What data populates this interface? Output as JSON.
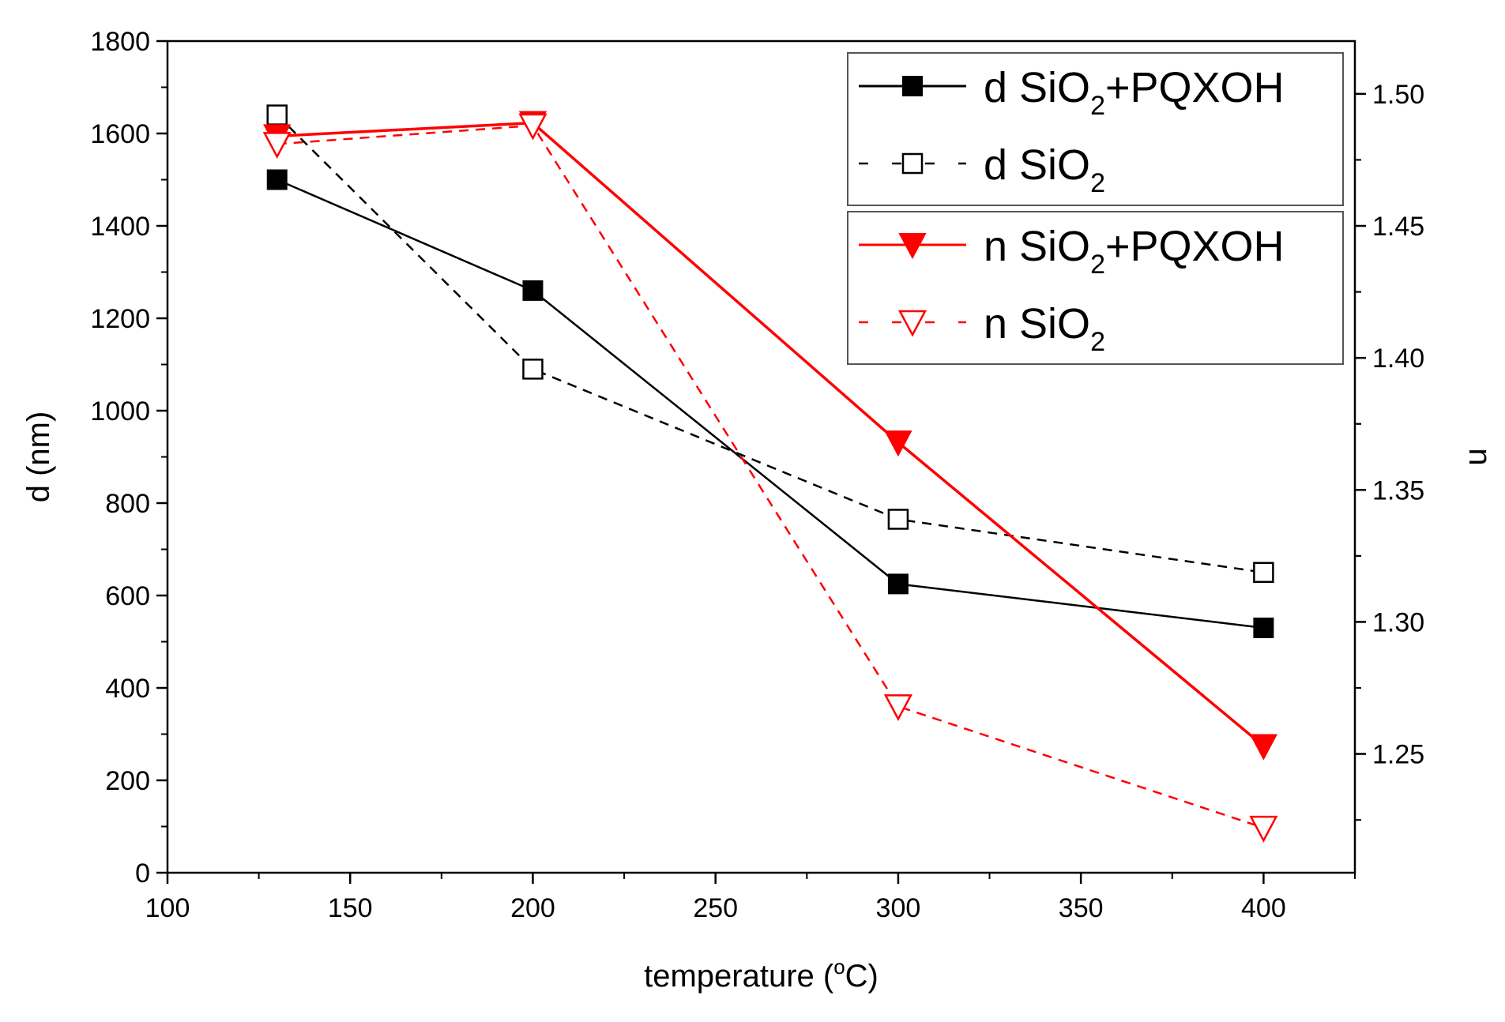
{
  "chart_data": {
    "type": "line",
    "title": "",
    "xlabel": "temperature (",
    "xlabel_degree": "o",
    "xlabel_unit": "C)",
    "ylabel_left": "d (nm)",
    "ylabel_right": "n",
    "xlim": [
      100,
      425
    ],
    "ylim_left": [
      0,
      1800
    ],
    "ylim_right": [
      1.205,
      1.52
    ],
    "x_ticks": [
      100,
      150,
      200,
      250,
      300,
      350,
      400
    ],
    "x_tick_labels": [
      "100",
      "150",
      "200",
      "250",
      "300",
      "350",
      "400"
    ],
    "y_left_ticks": [
      0,
      200,
      400,
      600,
      800,
      1000,
      1200,
      1400,
      1600,
      1800
    ],
    "y_left_tick_labels": [
      "0",
      "200",
      "400",
      "600",
      "800",
      "1000",
      "1200",
      "1400",
      "1600",
      "1800"
    ],
    "y_right_ticks": [
      1.25,
      1.3,
      1.35,
      1.4,
      1.45,
      1.5
    ],
    "y_right_tick_labels": [
      "1.25",
      "1.30",
      "1.35",
      "1.40",
      "1.45",
      "1.50"
    ],
    "x": [
      130,
      200,
      300,
      400
    ],
    "series": [
      {
        "name": "d SiO2+PQXOH",
        "legend_prefix": "d SiO",
        "legend_sub": "2",
        "legend_suffix": "+PQXOH",
        "axis": "left",
        "values": [
          1500,
          1260,
          625,
          530
        ],
        "color": "#000000",
        "line": "solid",
        "marker": "square-filled"
      },
      {
        "name": "d SiO2",
        "legend_prefix": "d SiO",
        "legend_sub": "2",
        "legend_suffix": "",
        "axis": "left",
        "values": [
          1640,
          1090,
          765,
          650
        ],
        "color": "#000000",
        "line": "dashed",
        "marker": "square-open"
      },
      {
        "name": "n SiO2+PQXOH",
        "legend_prefix": "n SiO",
        "legend_sub": "2",
        "legend_suffix": "+PQXOH",
        "axis": "right",
        "values": [
          1.484,
          1.489,
          1.368,
          1.253
        ],
        "color": "#ff0000",
        "line": "solid",
        "marker": "triangle-down-filled"
      },
      {
        "name": "n SiO2",
        "legend_prefix": "n SiO",
        "legend_sub": "2",
        "legend_suffix": "",
        "axis": "right",
        "values": [
          1.481,
          1.488,
          1.268,
          1.222
        ],
        "color": "#ff0000",
        "line": "dashed",
        "marker": "triangle-down-open"
      }
    ],
    "legend_position": "top-right",
    "grid": false
  }
}
